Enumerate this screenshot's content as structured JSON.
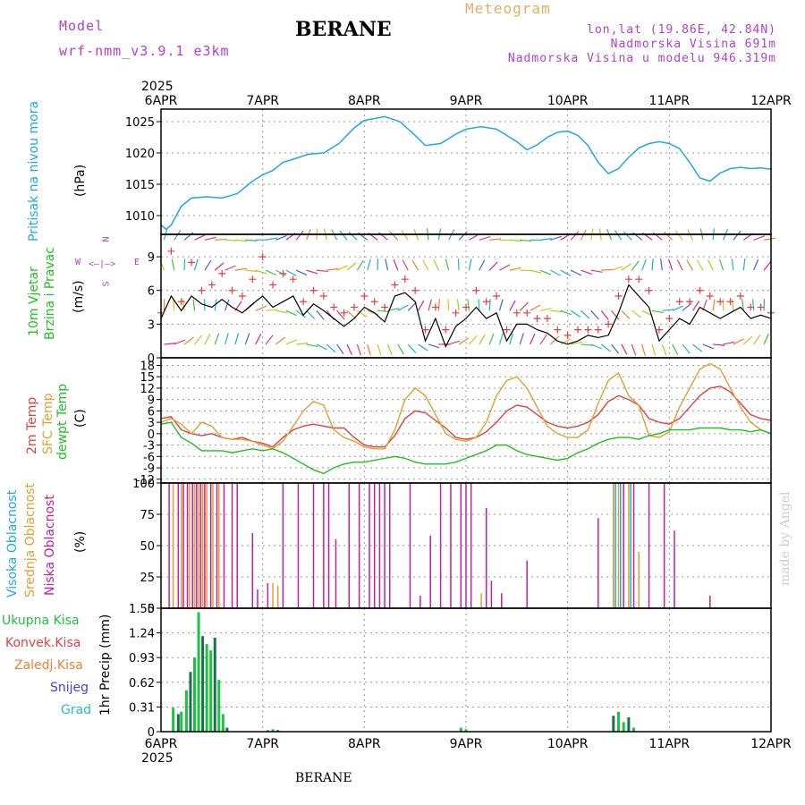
{
  "header": {
    "model_label": "Model",
    "model_name": "wrf-nmm_v3.9.1  e3km",
    "title": "BERANE",
    "meteogram": "Meteogram",
    "lonlat": "lon,lat (19.86E, 42.84N)",
    "altitude": "Nadmorska Visina 691m",
    "model_altitude": "Nadmorska Visina u modelu 946.319m",
    "footer": "BERANE",
    "credit": "made by Angel"
  },
  "colors": {
    "pressure": "#20a8e0",
    "temp2m": "#e04040",
    "sfc": "#e0a030",
    "dewpt": "#20c020",
    "cloud_low": "#c020a0",
    "cloud_mid": "#e0a030",
    "cloud_high": "#20a8e0",
    "precip_total": "#20c040",
    "precip_conv": "#e04040",
    "snow": "#4040e0",
    "grad": "#20c0c0"
  },
  "chart_data": [
    {
      "type": "line",
      "panel": "pressure",
      "ylabel_main": "Pritisak na nivou mora",
      "ylabel_unit": "(hPa)",
      "x_ticks": [
        "6APR",
        "7APR",
        "8APR",
        "9APR",
        "10APR",
        "11APR",
        "12APR"
      ],
      "x_year": "2025",
      "ylim": [
        1007,
        1027
      ],
      "yticks": [
        "1010",
        "1015",
        "1020",
        "1025"
      ],
      "x": [
        0,
        0.05,
        0.1,
        0.2,
        0.3,
        0.45,
        0.6,
        0.75,
        0.9,
        1.0,
        1.1,
        1.2,
        1.3,
        1.45,
        1.6,
        1.75,
        1.9,
        2.0,
        2.1,
        2.2,
        2.35,
        2.5,
        2.6,
        2.75,
        2.9,
        3.0,
        3.15,
        3.3,
        3.5,
        3.6,
        3.7,
        3.8,
        3.9,
        4.0,
        4.1,
        4.2,
        4.3,
        4.4,
        4.5,
        4.6,
        4.7,
        4.8,
        4.9,
        5.0,
        5.1,
        5.2,
        5.3,
        5.4,
        5.5,
        5.6,
        5.7,
        5.8,
        5.9,
        6.0
      ],
      "values": [
        1008.5,
        1007.8,
        1008.5,
        1011.5,
        1012.8,
        1013,
        1012.8,
        1013.5,
        1015.5,
        1016.5,
        1017.2,
        1018.5,
        1019,
        1019.8,
        1020,
        1021.5,
        1024,
        1025.2,
        1025.5,
        1025.8,
        1025,
        1022.8,
        1021.2,
        1021.5,
        1023,
        1023.8,
        1024.2,
        1023.8,
        1021.8,
        1020.5,
        1021.3,
        1022.5,
        1023.3,
        1023.5,
        1022.8,
        1021.2,
        1018.5,
        1016.7,
        1017.5,
        1019.3,
        1020.8,
        1021.5,
        1021.8,
        1021.5,
        1020.7,
        1018.5,
        1016,
        1015.5,
        1016.8,
        1017.5,
        1017.7,
        1017.5,
        1017.6,
        1017.4
      ]
    },
    {
      "type": "line",
      "panel": "wind",
      "ylabel_main": "10m Vjetar",
      "ylabel_sub": "Brzina i Pravac",
      "ylabel_unit": "(m/s)",
      "compass_n": "N",
      "compass_s": "S",
      "compass_w": "W",
      "compass_e": "E",
      "ylim": [
        0,
        11
      ],
      "yticks": [
        "0",
        "3",
        "6",
        "9"
      ],
      "x": [
        0,
        0.1,
        0.2,
        0.3,
        0.4,
        0.5,
        0.6,
        0.7,
        0.8,
        0.9,
        1.0,
        1.1,
        1.2,
        1.3,
        1.4,
        1.5,
        1.6,
        1.7,
        1.8,
        1.9,
        2.0,
        2.1,
        2.2,
        2.3,
        2.4,
        2.5,
        2.6,
        2.7,
        2.8,
        2.9,
        3.0,
        3.1,
        3.2,
        3.3,
        3.4,
        3.5,
        3.6,
        3.7,
        3.8,
        3.9,
        4.0,
        4.1,
        4.2,
        4.3,
        4.4,
        4.5,
        4.6,
        4.7,
        4.8,
        4.9,
        5.0,
        5.1,
        5.2,
        5.3,
        5.4,
        5.5,
        5.6,
        5.7,
        5.8,
        5.9,
        6.0
      ],
      "mean_values": [
        3.5,
        5.5,
        4.2,
        5.5,
        4.8,
        4.5,
        5.2,
        4.5,
        4.0,
        4.8,
        5.5,
        4.5,
        5.0,
        5.5,
        3.8,
        4.8,
        4.2,
        3.5,
        2.8,
        3.5,
        4.5,
        4.0,
        3.2,
        5.5,
        5.8,
        5.0,
        1.5,
        3.5,
        1.0,
        2.8,
        3.5,
        4.5,
        3.5,
        4.0,
        1.5,
        3.0,
        3.0,
        2.5,
        2.2,
        1.5,
        1.2,
        1.5,
        2.0,
        1.8,
        2.0,
        4.0,
        6.5,
        5.5,
        4.5,
        1.5,
        2.5,
        3.5,
        3.0,
        4.5,
        4.0,
        3.5,
        4.0,
        4.5,
        3.5,
        3.8,
        3.5
      ],
      "gust_values": [
        4,
        9.5,
        5,
        8.5,
        6,
        6.5,
        7.5,
        6,
        5.5,
        7,
        9,
        6.5,
        7.5,
        7,
        5,
        6,
        5.5,
        4.5,
        4,
        4.5,
        5.5,
        5,
        4.5,
        6.5,
        7,
        6,
        2.5,
        4.5,
        2.5,
        4,
        4.5,
        6,
        5,
        5.5,
        2.5,
        4,
        4,
        3.5,
        3.5,
        2.5,
        2,
        2.5,
        2.5,
        2.5,
        3,
        5.5,
        7,
        7,
        6,
        2.5,
        3.5,
        5,
        5,
        6,
        5.5,
        5,
        5,
        5.5,
        4.5,
        4.5,
        4
      ]
    },
    {
      "type": "line",
      "panel": "temperature",
      "ylabel_t2m": "2m Temp",
      "ylabel_sfc": "SFC Temp",
      "ylabel_dew": "dewpt Temp",
      "ylabel_unit": "(C)",
      "ylim": [
        -13,
        20
      ],
      "yticks": [
        "-12",
        "-9",
        "-6",
        "-3",
        "0",
        "3",
        "6",
        "9",
        "12",
        "15",
        "18"
      ],
      "x": [
        0,
        0.1,
        0.2,
        0.3,
        0.4,
        0.5,
        0.6,
        0.7,
        0.8,
        0.9,
        1.0,
        1.1,
        1.2,
        1.3,
        1.4,
        1.5,
        1.6,
        1.7,
        1.8,
        1.9,
        2.0,
        2.1,
        2.2,
        2.3,
        2.4,
        2.5,
        2.6,
        2.7,
        2.8,
        2.9,
        3.0,
        3.1,
        3.2,
        3.3,
        3.4,
        3.5,
        3.6,
        3.7,
        3.8,
        3.9,
        4.0,
        4.1,
        4.2,
        4.3,
        4.4,
        4.5,
        4.6,
        4.7,
        4.8,
        4.9,
        5.0,
        5.1,
        5.2,
        5.3,
        5.4,
        5.5,
        5.6,
        5.7,
        5.8,
        5.9,
        6.0
      ],
      "series": [
        {
          "name": "2m Temp",
          "values": [
            4,
            4.5,
            1,
            0,
            -0.5,
            0,
            -1,
            -1.5,
            -1,
            -2,
            -2.5,
            -3.5,
            -1,
            1,
            2,
            2.5,
            2,
            1.5,
            1.5,
            -1,
            -3,
            -3.5,
            -3.5,
            -0.5,
            4,
            6,
            5.5,
            3.5,
            1.5,
            -1,
            -1.5,
            -1,
            0.5,
            3,
            6,
            7.5,
            7,
            5,
            3,
            2,
            1.5,
            2,
            3,
            5,
            8.5,
            10,
            9,
            7.5,
            4,
            3,
            2.5,
            4,
            7,
            10,
            12,
            12.5,
            11,
            8,
            5,
            4,
            3.5
          ]
        },
        {
          "name": "SFC Temp",
          "values": [
            3,
            4,
            2.5,
            0,
            3,
            2,
            -1,
            -1.5,
            -1.5,
            -2,
            -3,
            -4,
            -2,
            2,
            6,
            8.5,
            7.5,
            1,
            -1,
            -2,
            -3.5,
            -4,
            -4,
            1,
            9,
            12,
            10,
            5,
            0,
            -1.5,
            -2,
            -1,
            3,
            10,
            14,
            15,
            12,
            7,
            2,
            0,
            -1,
            -1,
            1,
            8,
            14,
            16,
            10,
            7.5,
            -0.5,
            -1,
            0.5,
            7,
            12,
            17,
            18.5,
            17,
            12,
            7,
            3,
            1,
            0
          ]
        },
        {
          "name": "dewpt Temp",
          "values": [
            2.5,
            3,
            -1,
            -2.5,
            -4.5,
            -4.5,
            -4.5,
            -5,
            -4.5,
            -4,
            -4.5,
            -4,
            -5,
            -6.5,
            -8,
            -9.5,
            -10.5,
            -9,
            -8,
            -7.5,
            -7.5,
            -7,
            -6.5,
            -6,
            -6.5,
            -7.5,
            -8,
            -8,
            -8,
            -7.5,
            -6.5,
            -5.5,
            -4.5,
            -3,
            -3,
            -4.5,
            -5.5,
            -6,
            -6.5,
            -7,
            -6.5,
            -5,
            -4,
            -2.5,
            -1.5,
            -1,
            -1,
            -1.5,
            -0.5,
            0,
            1,
            1,
            1,
            1.5,
            1.5,
            1.5,
            1,
            1,
            0.5,
            1,
            0
          ]
        }
      ]
    },
    {
      "type": "bar",
      "panel": "cloud",
      "ylabel_high": "Visoka Oblacnost",
      "ylabel_mid": "Srednja Oblacnost",
      "ylabel_low": "Niska Oblacnost",
      "ylabel_unit": "(%)",
      "ylim": [
        0,
        100
      ],
      "yticks": [
        "0",
        "25",
        "50",
        "75",
        "100"
      ],
      "series": [
        {
          "name": "Niska",
          "x": [
            0.08,
            0.17,
            0.22,
            0.26,
            0.31,
            0.35,
            0.39,
            0.43,
            0.49,
            0.55,
            0.62,
            0.7,
            0.75,
            0.9,
            0.95,
            1.05,
            1.2,
            1.35,
            1.5,
            1.6,
            1.65,
            1.72,
            1.85,
            1.95,
            2.05,
            2.1,
            2.15,
            2.2,
            2.25,
            2.45,
            2.55,
            2.65,
            2.75,
            2.85,
            2.95,
            3.0,
            3.05,
            3.2,
            3.25,
            3.35,
            3.6,
            4.3,
            4.45,
            4.55,
            4.65,
            4.8,
            4.95,
            5.05,
            5.4
          ],
          "values": [
            100,
            100,
            100,
            100,
            100,
            100,
            100,
            100,
            100,
            100,
            100,
            100,
            100,
            60,
            15,
            20,
            100,
            100,
            100,
            100,
            100,
            55,
            100,
            100,
            100,
            100,
            100,
            100,
            100,
            100,
            10,
            58,
            100,
            100,
            100,
            100,
            100,
            80,
            22,
            12,
            38,
            72,
            100,
            100,
            100,
            100,
            100,
            62,
            10
          ]
        },
        {
          "name": "Srednja",
          "x": [
            0.12,
            0.2,
            0.28,
            0.33,
            0.37,
            0.41,
            0.45,
            0.51,
            0.57,
            1.1,
            1.15,
            3.15,
            4.45,
            4.5,
            4.6,
            4.7
          ],
          "values": [
            100,
            100,
            100,
            100,
            100,
            100,
            100,
            100,
            100,
            20,
            18,
            12,
            100,
            100,
            100,
            45
          ]
        },
        {
          "name": "Visoka",
          "x": [
            4.47,
            4.52,
            4.62
          ],
          "values": [
            100,
            100,
            100
          ]
        }
      ]
    },
    {
      "type": "bar",
      "panel": "precip",
      "ylabel_main": "1hr Precip",
      "ylabel_unit": "(mm)",
      "legend": [
        "Ukupna Kisa",
        "Konvek.Kisa",
        "Zaledj.Kisa",
        "Snijeg",
        "Grad"
      ],
      "ylim": [
        0,
        1.55
      ],
      "yticks": [
        "0",
        "0.31",
        "0.62",
        "0.93",
        "1.24",
        "1.55"
      ],
      "x": [
        0.12,
        0.17,
        0.2,
        0.25,
        0.29,
        0.33,
        0.37,
        0.41,
        0.45,
        0.49,
        0.53,
        0.57,
        0.61,
        0.65,
        1.05,
        1.1,
        1.15,
        2.95,
        3.0,
        4.45,
        4.5,
        4.55,
        4.6,
        4.65
      ],
      "values": [
        0.3,
        0.22,
        0.25,
        0.52,
        0.75,
        0.93,
        1.5,
        1.2,
        1.1,
        1.02,
        1.18,
        0.65,
        0.22,
        0.05,
        0.02,
        0.03,
        0.02,
        0.05,
        0.03,
        0.2,
        0.25,
        0.12,
        0.18,
        0.05
      ]
    }
  ]
}
